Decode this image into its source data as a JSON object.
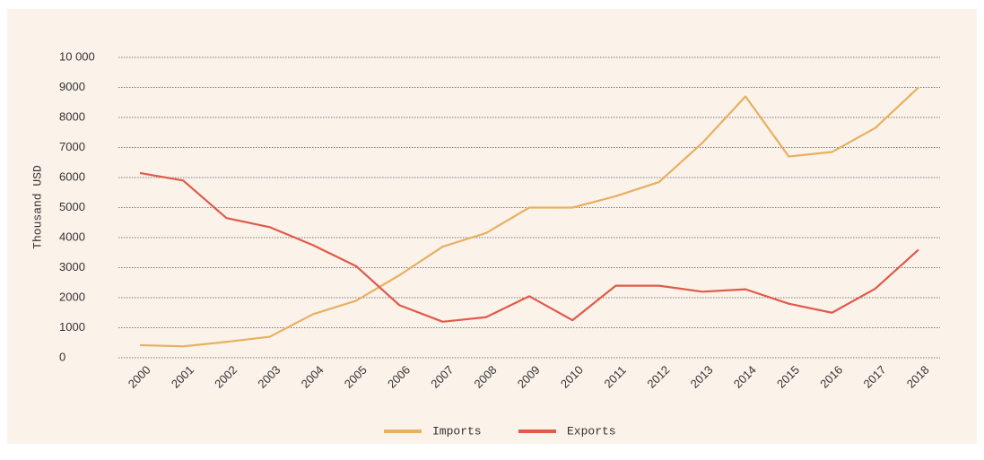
{
  "chart_data": {
    "type": "line",
    "ylabel": "Thousand USD",
    "categories": [
      "2000",
      "2001",
      "2002",
      "2003",
      "2004",
      "2005",
      "2006",
      "2007",
      "2008",
      "2009",
      "2010",
      "2011",
      "2012",
      "2013",
      "2014",
      "2015",
      "2016",
      "2017",
      "2018"
    ],
    "series": [
      {
        "name": "Imports",
        "color": "#e8b060",
        "values": [
          420,
          380,
          530,
          700,
          1450,
          1900,
          2750,
          3700,
          4150,
          5000,
          5000,
          5380,
          5850,
          7150,
          8700,
          6700,
          6850,
          7650,
          9000
        ]
      },
      {
        "name": "Exports",
        "color": "#e05a4a",
        "values": [
          6150,
          5900,
          4650,
          4350,
          3750,
          3050,
          1750,
          1200,
          1350,
          2050,
          1250,
          2400,
          2400,
          2200,
          2280,
          1800,
          1500,
          2300,
          3600
        ]
      }
    ],
    "ylim": [
      0,
      10000
    ],
    "yticks": [
      0,
      1000,
      2000,
      3000,
      4000,
      5000,
      6000,
      7000,
      8000,
      9000,
      {
        "value": 10000,
        "label": "10 000"
      }
    ],
    "grid": true,
    "legend": "bottom"
  }
}
